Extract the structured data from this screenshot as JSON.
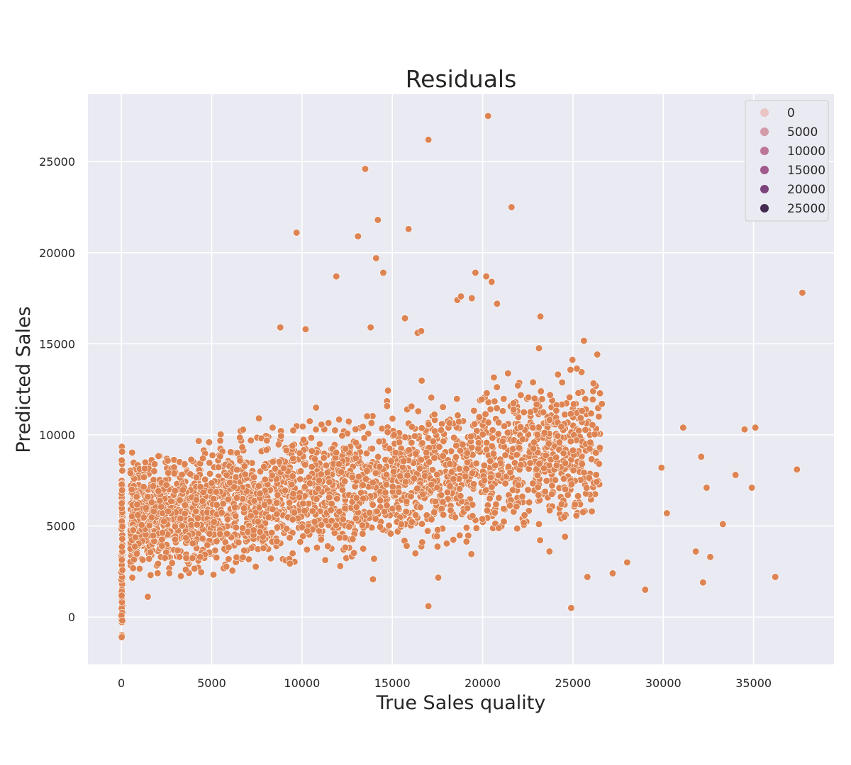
{
  "chart_data": {
    "type": "scatter",
    "title": "Residuals",
    "xlabel": "True Sales quality",
    "ylabel": "Predicted Sales",
    "xlim": [
      -1850,
      39450
    ],
    "ylim": [
      -2600,
      28700
    ],
    "xticks": [
      0,
      5000,
      10000,
      15000,
      20000,
      25000,
      30000,
      35000
    ],
    "yticks": [
      0,
      5000,
      10000,
      15000,
      20000,
      25000
    ],
    "grid": true,
    "style": "seaborn-darkgrid",
    "point_color": "#dd8452",
    "background_color": "#eaeaf2",
    "legend": {
      "placement": "top-right",
      "entries": [
        {
          "label": "0",
          "color": "#ebc5c3"
        },
        {
          "label": "5000",
          "color": "#d39ba9"
        },
        {
          "label": "10000",
          "color": "#bd7698"
        },
        {
          "label": "15000",
          "color": "#a05b8e"
        },
        {
          "label": "20000",
          "color": "#7c427c"
        },
        {
          "label": "25000",
          "color": "#432a4f"
        }
      ]
    },
    "series": [
      {
        "note_points": "outlier points read from the figure",
        "x": [
          20300,
          17000,
          13500,
          21600,
          14200,
          9700,
          15900,
          13100,
          14100,
          14500,
          11900,
          19600,
          20200,
          20500,
          18600,
          18800,
          19400,
          20800,
          23200,
          15700,
          13800,
          16400,
          16600,
          37700,
          37400,
          36200,
          35100,
          34900,
          34500,
          34000,
          33300,
          32600,
          32400,
          32200,
          31800,
          32100,
          31100,
          30200,
          29900,
          29000,
          28000,
          27200,
          25800,
          24900,
          23700,
          25300,
          26600,
          17000,
          10200,
          8800
        ],
        "y": [
          27500,
          26200,
          24600,
          22500,
          21800,
          21100,
          21300,
          20900,
          19700,
          18900,
          18700,
          18900,
          18700,
          18400,
          17400,
          17600,
          17500,
          17200,
          16500,
          16400,
          15900,
          15600,
          15700,
          17800,
          8100,
          2200,
          10400,
          7100,
          10300,
          7800,
          5100,
          3300,
          7100,
          1900,
          3600,
          8800,
          10400,
          5700,
          8200,
          1500,
          3000,
          2400,
          2200,
          500,
          3600,
          12300,
          11700,
          600,
          15800,
          15900
        ]
      }
    ]
  }
}
